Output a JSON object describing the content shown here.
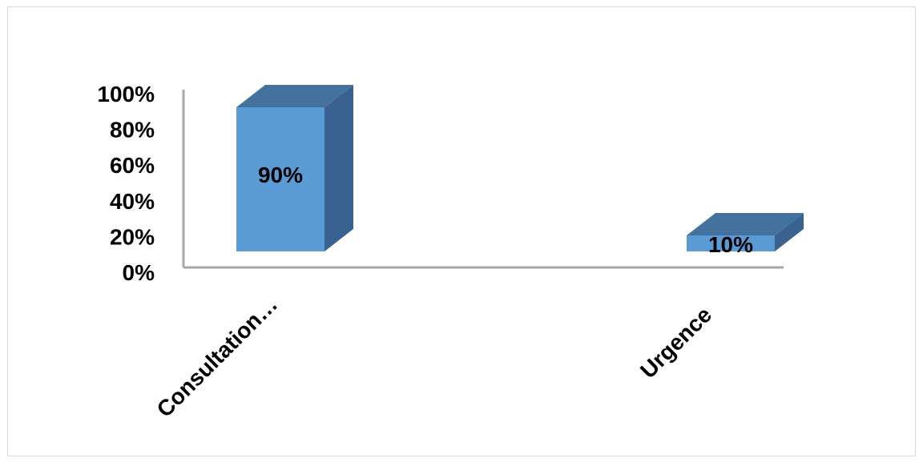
{
  "chart_data": {
    "type": "bar",
    "style": "3d-column",
    "categories": [
      "Consultation…",
      "Urgence"
    ],
    "values": [
      90,
      10
    ],
    "data_labels": [
      "90%",
      "10%"
    ],
    "ylim": [
      0,
      100
    ],
    "ytick_values": [
      0,
      20,
      40,
      60,
      80,
      100
    ],
    "ytick_labels": [
      "0%",
      "20%",
      "40%",
      "60%",
      "80%",
      "100%"
    ],
    "grid": false,
    "legend": "none",
    "colors": {
      "front": "#5b9bd5",
      "top": "#44729f",
      "side": "#3a6290",
      "axis": "#a6a6a6"
    }
  }
}
